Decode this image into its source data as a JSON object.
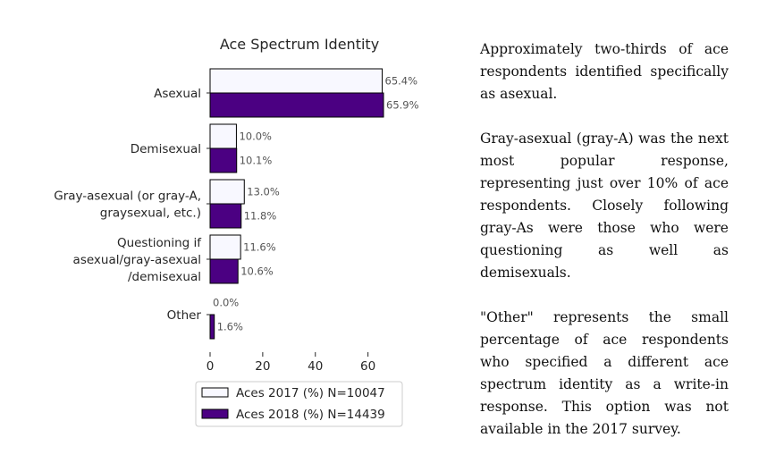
{
  "chart_data": {
    "type": "bar",
    "orientation": "horizontal",
    "title": "Ace Spectrum Identity",
    "xlabel": "",
    "ylabel": "",
    "xlim": [
      0,
      65.9
    ],
    "xticks": [
      0,
      20,
      40,
      60
    ],
    "grid": false,
    "legend_position": "bottom",
    "categories": [
      [
        "Asexual"
      ],
      [
        "Demisexual"
      ],
      [
        "Gray-asexual (or gray-A,",
        "graysexual, etc.)"
      ],
      [
        "Questioning if",
        "asexual/gray-asexual",
        "/demisexual"
      ],
      [
        "Other"
      ]
    ],
    "series": [
      {
        "name": "Aces 2017 (%) N=10047",
        "color": "#f8f8ff",
        "values": [
          65.4,
          10.0,
          13.0,
          11.6,
          0.0
        ],
        "labels": [
          "65.4%",
          "10.0%",
          "13.0%",
          "11.6%",
          "0.0%"
        ]
      },
      {
        "name": "Aces 2018 (%) N=14439",
        "color": "#4b0082",
        "values": [
          65.9,
          10.1,
          11.8,
          10.6,
          1.6
        ],
        "labels": [
          "65.9%",
          "10.1%",
          "11.8%",
          "10.6%",
          "1.6%"
        ]
      }
    ]
  },
  "description": {
    "paragraphs": [
      "Approximately two-thirds of ace respondents identified specifically as asexual.",
      "Gray-asexual (gray-A) was the next most popular response, representing just over 10% of ace respondents. Closely following gray-As were those who were questioning as well as demisexuals.",
      "\"Other\" represents the small percentage of ace respondents who specified a different ace spectrum identity as a write-in response. This option was not available in the 2017 survey."
    ]
  }
}
